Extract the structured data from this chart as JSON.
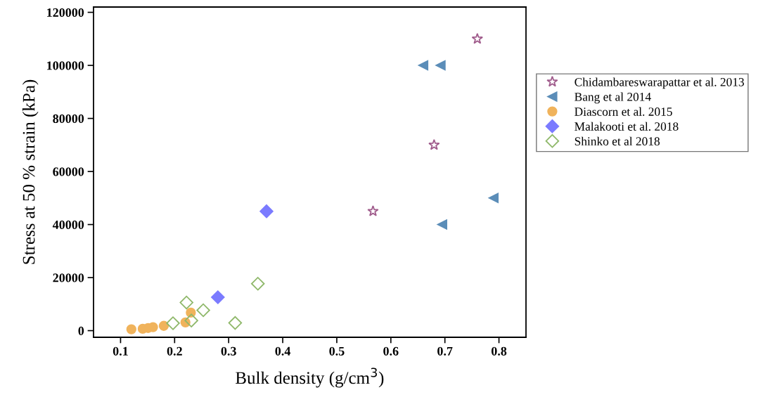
{
  "chart_data": {
    "type": "scatter",
    "xlabel": "Bulk density (g/cm$^{3}$)",
    "ylabel": "Stress at 50 % strain (kPa)",
    "xlim": [
      0.05,
      0.85
    ],
    "xticks": [
      0.1,
      0.2,
      0.3,
      0.4,
      0.5,
      0.6,
      0.7,
      0.8
    ],
    "ylim": [
      -2500,
      122000
    ],
    "yticks": [
      0,
      20000,
      40000,
      60000,
      80000,
      100000,
      120000
    ],
    "grid": false,
    "legend": "right",
    "series": [
      {
        "name": "Chidambareswarapattar et al. 2013",
        "color": "#a05c8c",
        "marker": "star",
        "x": [
          0.76,
          0.68,
          0.567
        ],
        "values": [
          110000,
          70000,
          45000
        ]
      },
      {
        "name": "Bang et al 2014",
        "color": "#5b8db8",
        "marker": "triangle",
        "x": [
          0.66,
          0.692,
          0.79,
          0.695
        ],
        "values": [
          100000,
          100000,
          50000,
          40000
        ]
      },
      {
        "name": "Diascorn et al. 2015",
        "color": "#f0b35c",
        "marker": "circle",
        "x": [
          0.12,
          0.141,
          0.151,
          0.16,
          0.18,
          0.22,
          0.23
        ],
        "values": [
          500,
          700,
          1000,
          1300,
          1800,
          3100,
          6800
        ]
      },
      {
        "name": "Malakooti et al. 2018",
        "color": "#7b7bff",
        "marker": "diamond",
        "x": [
          0.37,
          0.28
        ],
        "values": [
          45000,
          12600
        ]
      },
      {
        "name": "Shinko et al 2018",
        "color": "#8fb86a",
        "marker": "diamond",
        "x": [
          0.222,
          0.197,
          0.231,
          0.253,
          0.312,
          0.354
        ],
        "values": [
          10600,
          2800,
          3800,
          7700,
          2900,
          17700
        ]
      }
    ]
  }
}
